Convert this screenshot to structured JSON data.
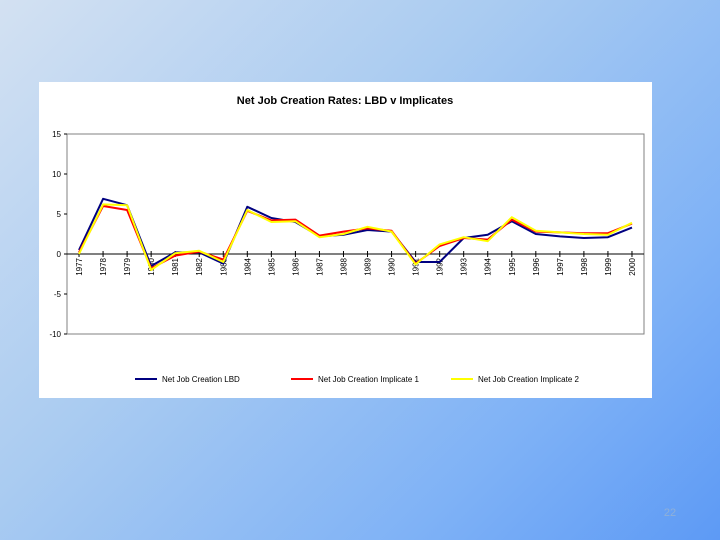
{
  "slide": {
    "page_number": "22"
  },
  "chart_data": {
    "type": "line",
    "title": "Net Job Creation Rates: LBD v Implicates",
    "xlabel": "",
    "ylabel": "",
    "ylim": [
      -10,
      15
    ],
    "yticks": [
      15,
      10,
      5,
      0,
      -5,
      -10
    ],
    "grid": false,
    "legend_position": "bottom",
    "categories": [
      "1977",
      "1978",
      "1979",
      "1980",
      "1981",
      "1982",
      "1983",
      "1984",
      "1985",
      "1986",
      "1987",
      "1988",
      "1989",
      "1990",
      "1991",
      "1992",
      "1993",
      "1994",
      "1995",
      "1996",
      "1997",
      "1998",
      "1999",
      "2000"
    ],
    "series": [
      {
        "name": "Net Job Creation LBD",
        "color": "#000080",
        "values": [
          0.5,
          6.9,
          6.1,
          -1.5,
          0.2,
          0.2,
          -1.2,
          5.9,
          4.5,
          4.0,
          2.2,
          2.4,
          3.0,
          2.8,
          -1.0,
          -1.0,
          2.0,
          2.4,
          4.1,
          2.5,
          2.2,
          2.0,
          2.1,
          3.3
        ]
      },
      {
        "name": "Net Job Creation Implicate 1",
        "color": "#ff0000",
        "values": [
          0.2,
          6.0,
          5.5,
          -1.8,
          -0.2,
          0.3,
          -0.7,
          5.4,
          4.2,
          4.3,
          2.3,
          2.8,
          3.2,
          2.9,
          -1.2,
          1.0,
          2.0,
          1.8,
          4.3,
          2.8,
          2.7,
          2.6,
          2.6,
          3.8
        ]
      },
      {
        "name": "Net Job Creation Implicate 2",
        "color": "#ffff00",
        "values": [
          0.0,
          6.2,
          6.1,
          -2.0,
          0.1,
          0.4,
          -1.0,
          5.5,
          4.0,
          4.1,
          2.1,
          2.5,
          3.4,
          2.8,
          -1.3,
          1.2,
          2.1,
          1.6,
          4.6,
          2.9,
          2.7,
          2.5,
          2.4,
          3.9
        ]
      }
    ]
  }
}
